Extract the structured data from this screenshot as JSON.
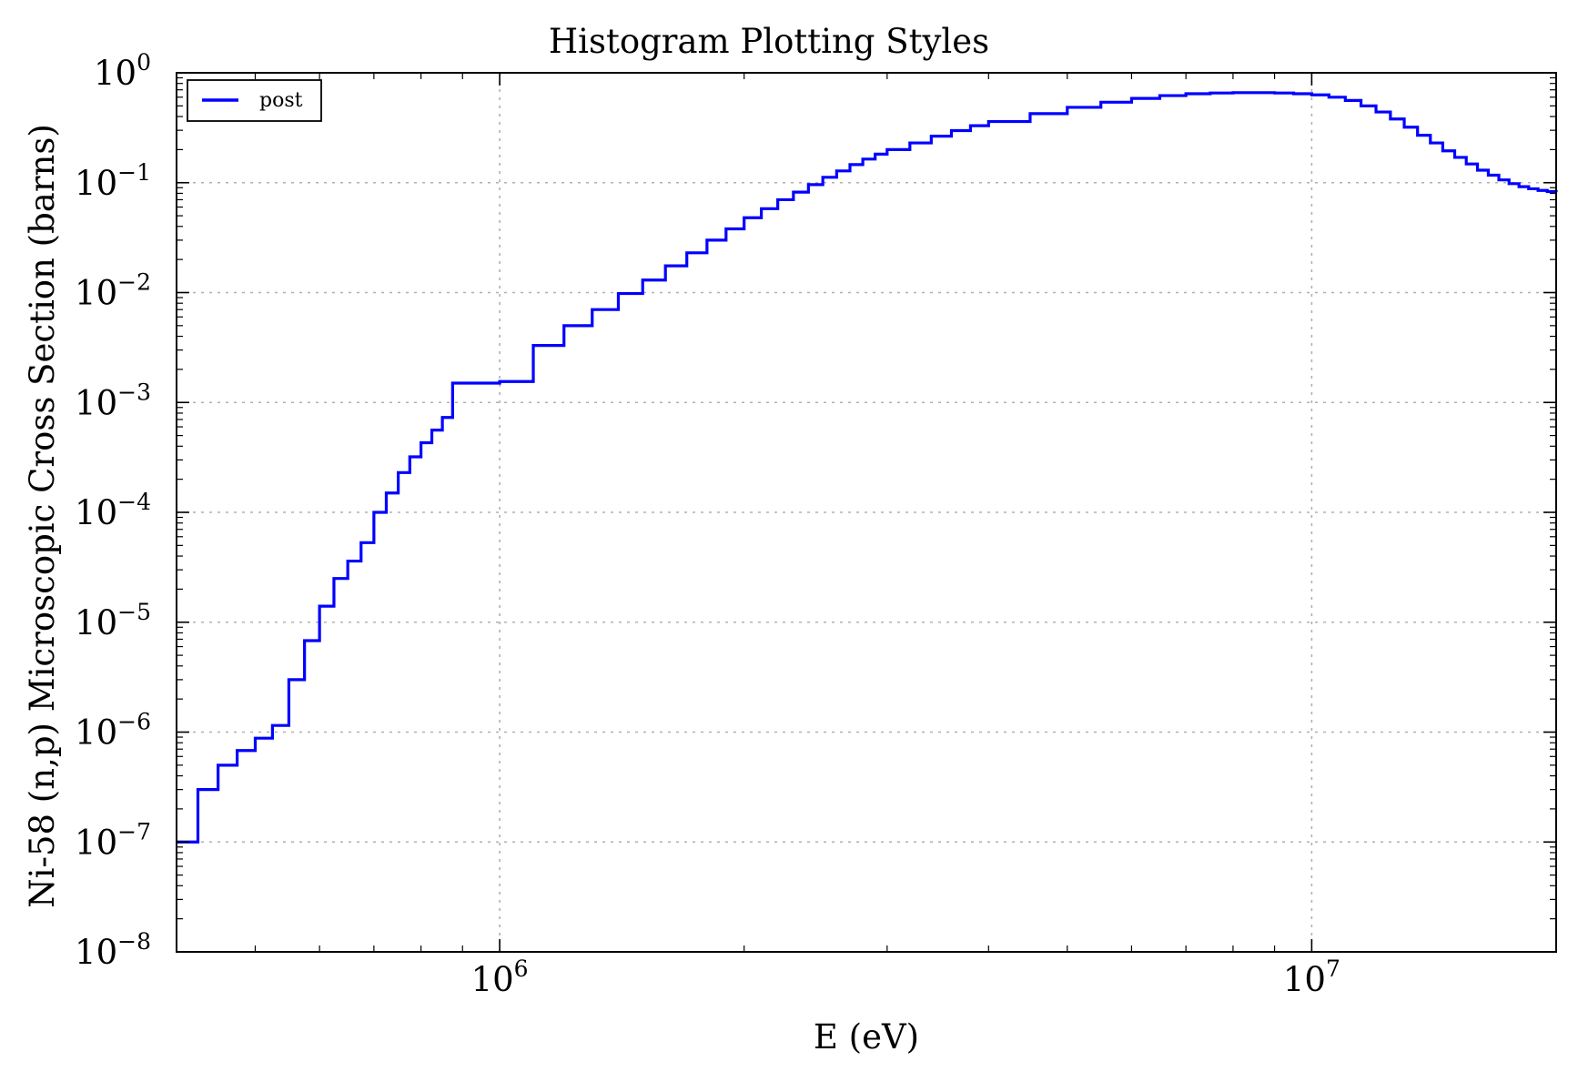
{
  "chart_data": {
    "type": "line",
    "title": "Histogram Plotting Styles",
    "xlabel": "E (eV)",
    "ylabel": "Ni-58 (n,p) Microscopic Cross Section (barns)",
    "x_scale": "log",
    "y_scale": "log",
    "xlim": [
      400000,
      20000000
    ],
    "ylim": [
      1e-08,
      1
    ],
    "grid": true,
    "legend_position": "top-left",
    "x_ticks": [
      {
        "value": 1000000,
        "base": "10",
        "exp": "6"
      },
      {
        "value": 10000000,
        "base": "10",
        "exp": "7"
      }
    ],
    "y_ticks": [
      {
        "value": 1e-08,
        "base": "10",
        "exp": "−8"
      },
      {
        "value": 1e-07,
        "base": "10",
        "exp": "−7"
      },
      {
        "value": 1e-06,
        "base": "10",
        "exp": "−6"
      },
      {
        "value": 1e-05,
        "base": "10",
        "exp": "−5"
      },
      {
        "value": 0.0001,
        "base": "10",
        "exp": "−4"
      },
      {
        "value": 0.001,
        "base": "10",
        "exp": "−3"
      },
      {
        "value": 0.01,
        "base": "10",
        "exp": "−2"
      },
      {
        "value": 0.1,
        "base": "10",
        "exp": "−1"
      },
      {
        "value": 1,
        "base": "10",
        "exp": "0"
      }
    ],
    "series": [
      {
        "name": "post",
        "color": "#0000ff",
        "drawstyle": "steps-post",
        "x": [
          400000,
          425000,
          450000,
          475000,
          500000,
          525000,
          550000,
          575000,
          600000,
          625000,
          650000,
          675000,
          700000,
          725000,
          750000,
          775000,
          800000,
          825000,
          850000,
          875000,
          900000,
          925000,
          950000,
          1000000,
          1100000,
          1200000,
          1300000,
          1400000,
          1500000,
          1600000,
          1700000,
          1800000,
          1900000,
          2000000,
          2100000,
          2200000,
          2300000,
          2400000,
          2500000,
          2600000,
          2700000,
          2800000,
          2900000,
          3000000,
          3200000,
          3400000,
          3600000,
          3800000,
          4000000,
          4500000,
          5000000,
          5500000,
          6000000,
          6500000,
          7000000,
          7500000,
          8000000,
          8500000,
          9000000,
          9500000,
          10000000,
          10500000,
          11000000,
          11500000,
          12000000,
          12500000,
          13000000,
          13500000,
          14000000,
          14500000,
          15000000,
          15500000,
          16000000,
          16500000,
          17000000,
          17500000,
          18000000,
          18500000,
          19000000,
          19500000,
          20000000
        ],
        "y": [
          1e-07,
          3e-07,
          5e-07,
          6.8e-07,
          8.8e-07,
          1.15e-06,
          3e-06,
          6.8e-06,
          1.4e-05,
          2.5e-05,
          3.6e-05,
          5.3e-05,
          0.0001,
          0.00015,
          0.00023,
          0.00032,
          0.00043,
          0.00056,
          0.00073,
          0.0015,
          0.0015,
          0.0015,
          0.0015,
          0.00155,
          0.0033,
          0.005,
          0.007,
          0.0098,
          0.013,
          0.0175,
          0.023,
          0.03,
          0.038,
          0.048,
          0.058,
          0.07,
          0.082,
          0.096,
          0.112,
          0.128,
          0.146,
          0.164,
          0.182,
          0.2,
          0.23,
          0.265,
          0.298,
          0.33,
          0.36,
          0.425,
          0.485,
          0.54,
          0.585,
          0.62,
          0.645,
          0.655,
          0.66,
          0.66,
          0.655,
          0.645,
          0.63,
          0.6,
          0.56,
          0.5,
          0.44,
          0.38,
          0.32,
          0.27,
          0.23,
          0.195,
          0.17,
          0.148,
          0.13,
          0.117,
          0.106,
          0.098,
          0.092,
          0.088,
          0.085,
          0.083,
          0.082
        ]
      }
    ]
  }
}
